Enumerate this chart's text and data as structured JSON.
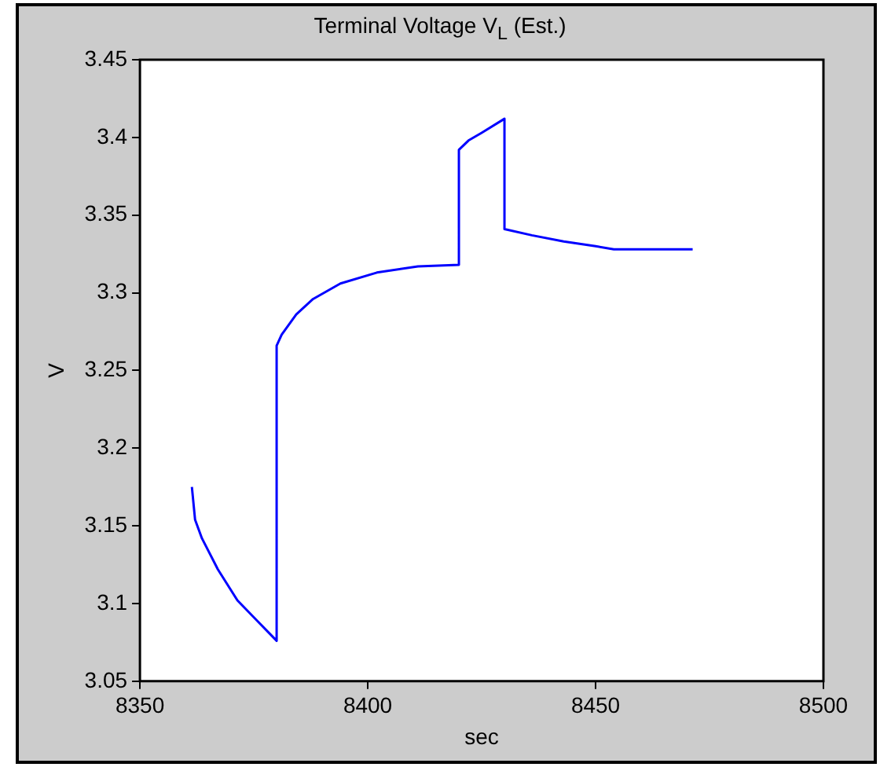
{
  "chart_data": {
    "type": "line",
    "title": "Terminal Voltage V$_{L}$ (Est.)",
    "xlabel": "sec",
    "ylabel": "V",
    "xlim": [
      8350,
      8500
    ],
    "xticks": [
      8350,
      8400,
      8450,
      8500
    ],
    "ylim": [
      3.05,
      3.45
    ],
    "yticks": [
      3.05,
      3.1,
      3.15,
      3.2,
      3.25,
      3.3,
      3.35,
      3.4,
      3.45
    ],
    "grid": false,
    "legend": false,
    "marker": "none",
    "line_style": "solid",
    "series": [
      {
        "color": "#0000ff",
        "x": [
          8361.4,
          8362.1,
          8363.6,
          8367.1,
          8371.4,
          8375.7,
          8380,
          8380,
          8381.1,
          8384.3,
          8388,
          8394,
          8402,
          8411,
          8420,
          8420,
          8422.1,
          8425,
          8430,
          8430,
          8436,
          8443,
          8450,
          8454,
          8471.3
        ],
        "values": [
          3.175,
          3.154,
          3.142,
          3.122,
          3.102,
          3.089,
          3.076,
          3.266,
          3.273,
          3.286,
          3.296,
          3.306,
          3.313,
          3.317,
          3.318,
          3.392,
          3.398,
          3.403,
          3.412,
          3.341,
          3.337,
          3.333,
          3.33,
          3.328,
          3.328
        ]
      }
    ]
  }
}
